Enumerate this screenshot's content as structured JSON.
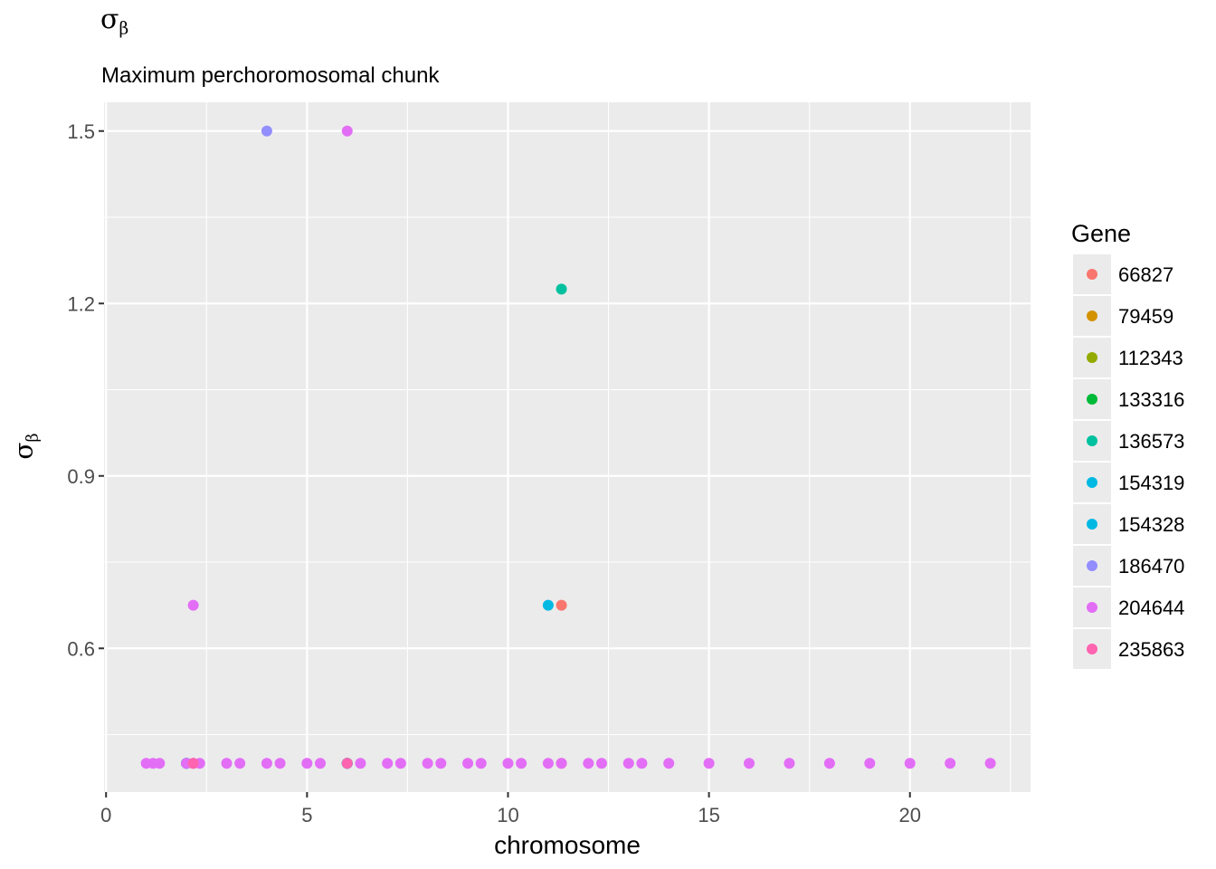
{
  "title": {
    "main": "σ",
    "sub": "β"
  },
  "subtitle": "Maximum perchoromosomal chunk",
  "chart_data": {
    "type": "scatter",
    "xlabel": "chromosome",
    "ylabel": {
      "main": "σ",
      "sub": "β"
    },
    "xlim": [
      0,
      23
    ],
    "ylim": [
      0.35,
      1.55
    ],
    "x_ticks": [
      0,
      5,
      10,
      15,
      20
    ],
    "y_ticks": [
      0.6,
      0.9,
      1.2,
      1.5
    ],
    "x_tick_labels": [
      "0",
      "5",
      "10",
      "15",
      "20"
    ],
    "y_tick_labels": [
      "0.6",
      "0.9",
      "1.2",
      "1.5"
    ],
    "grid": true,
    "legend": {
      "title": "Gene",
      "position": "right"
    },
    "series": [
      {
        "name": "66827",
        "color": "#F8766D",
        "points": [
          [
            2.0,
            0.4
          ],
          [
            2.17,
            0.4
          ],
          [
            6.0,
            0.4
          ],
          [
            11.33,
            0.675
          ],
          [
            11.33,
            0.4
          ]
        ]
      },
      {
        "name": "79459",
        "color": "#D39200",
        "points": [
          [
            2.0,
            0.4
          ],
          [
            6.0,
            0.4
          ]
        ]
      },
      {
        "name": "112343",
        "color": "#93AA00",
        "points": [
          [
            2.0,
            0.4
          ],
          [
            6.0,
            0.4
          ]
        ]
      },
      {
        "name": "133316",
        "color": "#00BA38",
        "points": [
          [
            2.0,
            0.4
          ],
          [
            6.0,
            0.4
          ]
        ]
      },
      {
        "name": "136573",
        "color": "#00C19F",
        "points": [
          [
            11.33,
            1.225
          ],
          [
            2.0,
            0.4
          ],
          [
            6.0,
            0.4
          ]
        ]
      },
      {
        "name": "154319",
        "color": "#00B9E3",
        "points": [
          [
            11.0,
            0.675
          ],
          [
            2.0,
            0.4
          ],
          [
            6.0,
            0.4
          ]
        ]
      },
      {
        "name": "154328",
        "color": "#00B9E3",
        "points": [
          [
            2.0,
            0.4
          ],
          [
            6.0,
            0.4
          ]
        ]
      },
      {
        "name": "186470",
        "color": "#928EFF",
        "points": [
          [
            4.0,
            1.5
          ],
          [
            2.0,
            0.4
          ],
          [
            6.0,
            0.4
          ]
        ]
      },
      {
        "name": "204644",
        "color": "#E36EF6",
        "points": [
          [
            6.0,
            1.5
          ],
          [
            2.17,
            0.675
          ],
          [
            1.0,
            0.4
          ],
          [
            1.17,
            0.4
          ],
          [
            1.33,
            0.4
          ],
          [
            2.0,
            0.4
          ],
          [
            2.17,
            0.4
          ],
          [
            2.33,
            0.4
          ],
          [
            3.0,
            0.4
          ],
          [
            3.33,
            0.4
          ],
          [
            4.0,
            0.4
          ],
          [
            4.33,
            0.4
          ],
          [
            5.0,
            0.4
          ],
          [
            5.33,
            0.4
          ],
          [
            6.33,
            0.4
          ],
          [
            7.0,
            0.4
          ],
          [
            7.33,
            0.4
          ],
          [
            8.0,
            0.4
          ],
          [
            8.33,
            0.4
          ],
          [
            9.0,
            0.4
          ],
          [
            9.33,
            0.4
          ],
          [
            10.0,
            0.4
          ],
          [
            10.33,
            0.4
          ],
          [
            11.0,
            0.4
          ],
          [
            11.33,
            0.4
          ],
          [
            12.0,
            0.4
          ],
          [
            12.33,
            0.4
          ],
          [
            13.0,
            0.4
          ],
          [
            13.33,
            0.4
          ],
          [
            14.0,
            0.4
          ],
          [
            15.0,
            0.4
          ],
          [
            16.0,
            0.4
          ],
          [
            17.0,
            0.4
          ],
          [
            18.0,
            0.4
          ],
          [
            19.0,
            0.4
          ],
          [
            20.0,
            0.4
          ],
          [
            21.0,
            0.4
          ],
          [
            22.0,
            0.4
          ]
        ]
      },
      {
        "name": "235863",
        "color": "#FF64B0",
        "points": [
          [
            6.0,
            0.4
          ],
          [
            2.17,
            0.4
          ]
        ]
      }
    ]
  }
}
